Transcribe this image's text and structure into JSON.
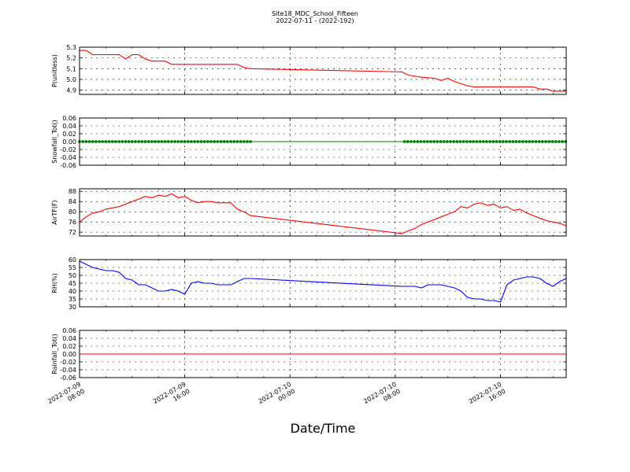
{
  "figure": {
    "title_line1": "Site18_MDC_School_Fifteen",
    "title_line2": "2022-07-11 - (2022-192)",
    "xlabel": "Date/Time",
    "x_ticks": [
      {
        "l1": "2022-07-09",
        "l2": "08:00",
        "t": 0
      },
      {
        "l1": "2022-07-09",
        "l2": "16:00",
        "t": 8
      },
      {
        "l1": "2022-07-10",
        "l2": "00:00",
        "t": 16
      },
      {
        "l1": "2022-07-10",
        "l2": "08:00",
        "t": 24
      },
      {
        "l1": "2022-07-10",
        "l2": "16:00",
        "t": 32
      }
    ],
    "x_minor_interval_hours": 2,
    "x_range_hours": [
      0,
      37
    ]
  },
  "chart_data": [
    {
      "type": "line",
      "ylabel": "P(unitless)",
      "ylim": [
        4.86,
        5.3
      ],
      "yticks": [
        "5.3",
        "5.2",
        "5.1",
        "5.0",
        "4.9"
      ],
      "ytick_values": [
        5.3,
        5.2,
        5.1,
        5.0,
        4.9
      ],
      "color": "#ff0000",
      "marker": false,
      "x": [
        0,
        0.5,
        1,
        1.5,
        2,
        2.5,
        3,
        3.5,
        4,
        4.5,
        5,
        5.5,
        6,
        6.5,
        7,
        7.5,
        8,
        9,
        10,
        11,
        12,
        12.5,
        13,
        24.5,
        25,
        26,
        27,
        27.5,
        28,
        28.5,
        29,
        29.5,
        30,
        31,
        32,
        33,
        34,
        34.5,
        35,
        35.5,
        36,
        36.5,
        37
      ],
      "y": [
        5.27,
        5.27,
        5.23,
        5.23,
        5.23,
        5.23,
        5.23,
        5.19,
        5.23,
        5.23,
        5.19,
        5.17,
        5.17,
        5.17,
        5.14,
        5.14,
        5.14,
        5.14,
        5.14,
        5.14,
        5.14,
        5.11,
        5.1,
        5.07,
        5.04,
        5.02,
        5.01,
        4.99,
        5.01,
        4.98,
        4.96,
        4.94,
        4.93,
        4.93,
        4.93,
        4.93,
        4.93,
        4.93,
        4.91,
        4.91,
        4.89,
        4.89,
        4.89
      ]
    },
    {
      "type": "line",
      "ylabel": "Snowfall_Tot()",
      "ylim": [
        -0.06,
        0.06
      ],
      "yticks": [
        "0.06",
        "0.04",
        "0.02",
        "0.00",
        "-0.02",
        "-0.04",
        "-0.06"
      ],
      "ytick_values": [
        0.06,
        0.04,
        0.02,
        0,
        -0.02,
        -0.04,
        -0.06
      ],
      "color": "#008000",
      "marker": true,
      "marker_ranges": [
        [
          0,
          13
        ],
        [
          24.7,
          37
        ]
      ],
      "x": [
        0,
        37
      ],
      "y": [
        0,
        0
      ]
    },
    {
      "type": "line",
      "ylabel": "AirTF(F)",
      "ylim": [
        70.5,
        89
      ],
      "yticks": [
        "88",
        "84",
        "80",
        "76",
        "72"
      ],
      "ytick_values": [
        88,
        84,
        80,
        76,
        72
      ],
      "color": "#ff0000",
      "marker": false,
      "x": [
        0,
        0.5,
        1,
        1.5,
        2,
        2.5,
        3,
        3.5,
        4,
        4.5,
        5,
        5.5,
        6,
        6.5,
        7,
        7.5,
        8,
        8.5,
        9,
        9.5,
        10,
        10.5,
        11,
        11.5,
        12,
        12.5,
        13,
        24.5,
        25,
        25.5,
        26,
        26.5,
        27,
        27.5,
        28,
        28.5,
        29,
        29.5,
        30,
        30.5,
        31,
        31.5,
        32,
        32.5,
        33,
        33.5,
        34,
        34.5,
        35,
        35.5,
        36,
        36.5,
        37
      ],
      "y": [
        76,
        78,
        79.5,
        80,
        81,
        81.5,
        82,
        83,
        84,
        85,
        86,
        85.5,
        86.5,
        86,
        87,
        85.5,
        86,
        84.5,
        83.5,
        84,
        84,
        83.5,
        83.5,
        83.5,
        81,
        80,
        78.5,
        71.5,
        72.5,
        73.5,
        75,
        76,
        77,
        78,
        79,
        80,
        82,
        81.5,
        83,
        83.5,
        82.5,
        83,
        81.5,
        82,
        80.5,
        81,
        79.5,
        78.5,
        77.5,
        76.5,
        76,
        75.5,
        74.5
      ]
    },
    {
      "type": "line",
      "ylabel": "RH(%)",
      "ylim": [
        30,
        60
      ],
      "yticks": [
        "60",
        "55",
        "50",
        "45",
        "40",
        "35",
        "30"
      ],
      "ytick_values": [
        60,
        55,
        50,
        45,
        40,
        35,
        30
      ],
      "color": "#0000ff",
      "marker": false,
      "x": [
        0,
        0.5,
        1,
        1.5,
        2,
        2.5,
        3,
        3.5,
        4,
        4.5,
        5,
        5.5,
        6,
        6.5,
        7,
        7.5,
        8,
        8.5,
        9,
        9.5,
        10,
        10.5,
        11,
        11.5,
        12,
        12.5,
        13,
        24.5,
        25,
        25.5,
        26,
        26.5,
        27,
        27.5,
        28,
        28.5,
        29,
        29.5,
        30,
        30.5,
        31,
        31.5,
        32,
        32.5,
        33,
        33.5,
        34,
        34.5,
        35,
        35.5,
        36,
        36.5,
        37
      ],
      "y": [
        59,
        57,
        55,
        54,
        53,
        53,
        52,
        48,
        47,
        44,
        44,
        42,
        40,
        40,
        41,
        40,
        38,
        45,
        46,
        45,
        45,
        44,
        44,
        44,
        46,
        48,
        48,
        43,
        43,
        43,
        42,
        44,
        44,
        44,
        43,
        42,
        40,
        36,
        35,
        35,
        34,
        34,
        33,
        44,
        47,
        48,
        49,
        49,
        48,
        45,
        43,
        46,
        48
      ]
    },
    {
      "type": "line",
      "ylabel": "Rainfall_Tot()",
      "ylim": [
        -0.06,
        0.06
      ],
      "yticks": [
        "0.06",
        "0.04",
        "0.02",
        "0.00",
        "-0.02",
        "-0.04",
        "-0.06"
      ],
      "ytick_values": [
        0.06,
        0.04,
        0.02,
        0,
        -0.02,
        -0.04,
        -0.06
      ],
      "color": "#ff0000",
      "marker": false,
      "x": [
        0,
        37
      ],
      "y": [
        0,
        0
      ]
    }
  ]
}
